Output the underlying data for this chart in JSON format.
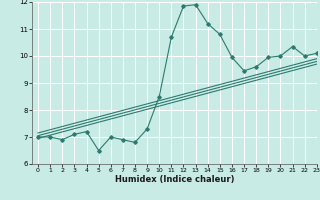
{
  "x_data": [
    0,
    1,
    2,
    3,
    4,
    5,
    6,
    7,
    8,
    9,
    10,
    11,
    12,
    13,
    14,
    15,
    16,
    17,
    18,
    19,
    20,
    21,
    22,
    23
  ],
  "y_scatter": [
    7.0,
    7.0,
    6.9,
    7.1,
    7.2,
    6.5,
    7.0,
    6.9,
    6.8,
    7.3,
    8.5,
    10.7,
    11.85,
    11.9,
    11.2,
    10.8,
    9.95,
    9.45,
    9.6,
    9.95,
    10.0,
    10.35,
    10.0,
    10.1
  ],
  "reg_lines": [
    {
      "x0": 0,
      "y0": 6.95,
      "x1": 23,
      "y1": 9.7
    },
    {
      "x0": 0,
      "y0": 7.05,
      "x1": 23,
      "y1": 9.8
    },
    {
      "x0": 0,
      "y0": 7.15,
      "x1": 23,
      "y1": 9.9
    }
  ],
  "line_color": "#2d7a6e",
  "bg_color": "#c8ebe6",
  "grid_color": "#b0ddd7",
  "xlabel": "Humidex (Indice chaleur)",
  "ylim": [
    6,
    12
  ],
  "xlim": [
    -0.5,
    23
  ],
  "yticks": [
    6,
    7,
    8,
    9,
    10,
    11,
    12
  ],
  "xticks": [
    0,
    1,
    2,
    3,
    4,
    5,
    6,
    7,
    8,
    9,
    10,
    11,
    12,
    13,
    14,
    15,
    16,
    17,
    18,
    19,
    20,
    21,
    22,
    23
  ]
}
